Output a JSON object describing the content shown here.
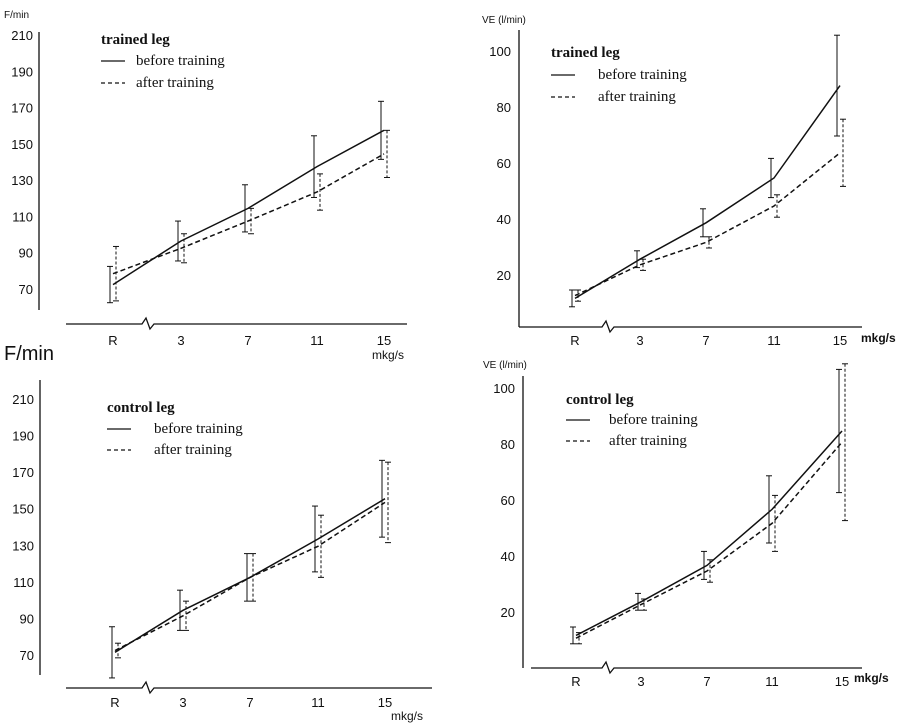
{
  "chart_data": [
    {
      "type": "line",
      "panel": "top-left",
      "title": "trained leg",
      "ylabel": "F/min",
      "xlabel": "mkg/s",
      "categories": [
        "R",
        "3",
        "7",
        "11",
        "15"
      ],
      "yticks": [
        70,
        90,
        110,
        130,
        150,
        170,
        190,
        210
      ],
      "ylim": [
        60,
        215
      ],
      "legend_position": "top-left",
      "series": [
        {
          "name": "before training",
          "style": "solid",
          "values": [
            73,
            97,
            115,
            138,
            158
          ],
          "err": [
            10,
            11,
            13,
            17,
            16
          ]
        },
        {
          "name": "after training",
          "style": "dashed",
          "values": [
            79,
            93,
            108,
            124,
            145
          ],
          "err": [
            15,
            8,
            7,
            10,
            13
          ]
        }
      ]
    },
    {
      "type": "line",
      "panel": "top-right",
      "title": "trained leg",
      "ylabel": "VE (l/min)",
      "xlabel": "mkg/s",
      "categories": [
        "R",
        "3",
        "7",
        "11",
        "15"
      ],
      "yticks": [
        20,
        40,
        60,
        80,
        100
      ],
      "ylim": [
        3,
        108
      ],
      "legend_position": "top-left",
      "series": [
        {
          "name": "before training",
          "style": "solid",
          "values": [
            12,
            26,
            39,
            55,
            88
          ],
          "err": [
            3,
            3,
            5,
            7,
            18
          ]
        },
        {
          "name": "after training",
          "style": "dashed",
          "values": [
            13,
            24,
            32,
            45,
            64
          ],
          "err": [
            2,
            2,
            2,
            4,
            12
          ]
        }
      ]
    },
    {
      "type": "line",
      "panel": "bottom-left",
      "title": "control leg",
      "ylabel": "F/min",
      "xlabel": "mkg/s",
      "categories": [
        "R",
        "3",
        "7",
        "11",
        "15"
      ],
      "yticks": [
        70,
        90,
        110,
        130,
        150,
        170,
        190,
        210
      ],
      "ylim": [
        60,
        225
      ],
      "legend_position": "top-left",
      "series": [
        {
          "name": "before training",
          "style": "solid",
          "values": [
            72,
            95,
            113,
            134,
            156
          ],
          "err": [
            14,
            11,
            13,
            18,
            21
          ]
        },
        {
          "name": "after training",
          "style": "dashed",
          "values": [
            73,
            92,
            113,
            130,
            154
          ],
          "err": [
            4,
            8,
            13,
            17,
            22
          ]
        }
      ]
    },
    {
      "type": "line",
      "panel": "bottom-right",
      "title": "control leg",
      "ylabel": "VE (l/min)",
      "xlabel": "mkg/s",
      "categories": [
        "R",
        "3",
        "7",
        "11",
        "15"
      ],
      "yticks": [
        20,
        40,
        60,
        80,
        100
      ],
      "ylim": [
        3,
        108
      ],
      "legend_position": "top-left",
      "series": [
        {
          "name": "before training",
          "style": "solid",
          "values": [
            12,
            24,
            37,
            57,
            85
          ],
          "err": [
            3,
            3,
            5,
            12,
            22
          ]
        },
        {
          "name": "after training",
          "style": "dashed",
          "values": [
            11,
            23,
            35,
            52,
            81
          ],
          "err": [
            2,
            2,
            4,
            10,
            28
          ]
        }
      ]
    }
  ]
}
